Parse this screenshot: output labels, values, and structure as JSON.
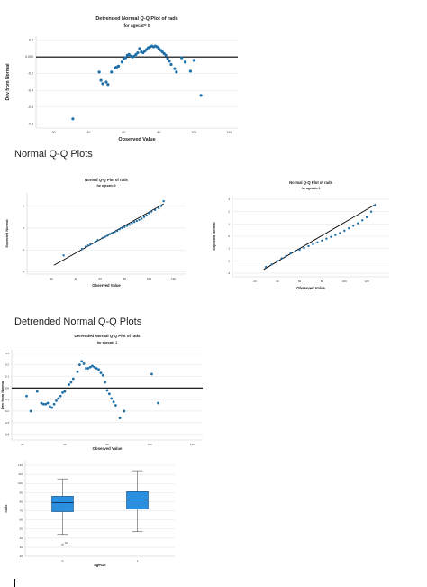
{
  "headings": {
    "normal_qq": "Normal Q-Q Plots",
    "detrended_qq": "Detrended Normal Q-Q Plots"
  },
  "colors": {
    "point": "#1f6fa8",
    "reference_line": "#000000",
    "grid": "#e6e6e6",
    "box_fill": "#2a8fdf",
    "box_stroke": "#1a4f80"
  },
  "chart_data": [
    {
      "type": "scatter",
      "title": "Detrended Normal Q-Q Plot of rads",
      "subtitle": "for agecat= 0",
      "xlabel": "Observed Value",
      "ylabel": "Dev from Normal",
      "xlim": [
        10,
        125
      ],
      "ylim": [
        -0.85,
        0.25
      ],
      "xticks": [
        20,
        40,
        60,
        80,
        100,
        120
      ],
      "yticks": [
        0.2,
        0.0,
        -0.2,
        -0.4,
        -0.6,
        -0.8
      ],
      "ytick_labels": [
        "0.2",
        "0.000",
        "-0.2",
        "-0.4",
        "-0.6",
        "-0.8"
      ],
      "grid": true,
      "reference_line": {
        "y": 0
      },
      "points": [
        [
          31,
          -0.74
        ],
        [
          46,
          -0.18
        ],
        [
          47,
          -0.28
        ],
        [
          48,
          -0.32
        ],
        [
          50,
          -0.3
        ],
        [
          51,
          -0.33
        ],
        [
          53,
          -0.18
        ],
        [
          55,
          -0.13
        ],
        [
          56,
          -0.12
        ],
        [
          57,
          -0.11
        ],
        [
          59,
          -0.06
        ],
        [
          60,
          -0.02
        ],
        [
          61,
          -0.01
        ],
        [
          62,
          0.02
        ],
        [
          63,
          0.03
        ],
        [
          64,
          0.01
        ],
        [
          65,
          0.0
        ],
        [
          66,
          0.01
        ],
        [
          67,
          0.03
        ],
        [
          68,
          0.05
        ],
        [
          69,
          0.1
        ],
        [
          70,
          0.06
        ],
        [
          71,
          0.05
        ],
        [
          72,
          0.07
        ],
        [
          73,
          0.09
        ],
        [
          74,
          0.11
        ],
        [
          75,
          0.12
        ],
        [
          76,
          0.13
        ],
        [
          77,
          0.12
        ],
        [
          78,
          0.13
        ],
        [
          79,
          0.12
        ],
        [
          80,
          0.1
        ],
        [
          81,
          0.08
        ],
        [
          82,
          0.06
        ],
        [
          83,
          0.04
        ],
        [
          84,
          0.02
        ],
        [
          85,
          -0.02
        ],
        [
          86,
          -0.05
        ],
        [
          87,
          -0.09
        ],
        [
          89,
          -0.14
        ],
        [
          90,
          -0.18
        ],
        [
          93,
          -0.01
        ],
        [
          95,
          -0.06
        ],
        [
          98,
          -0.17
        ],
        [
          100,
          -0.04
        ],
        [
          104,
          -0.46
        ]
      ]
    },
    {
      "type": "scatter",
      "title": "Normal Q-Q Plot of rads",
      "subtitle": "for agecat= 0",
      "xlabel": "Observed Value",
      "ylabel": "Expected Normal",
      "xlim": [
        0,
        130
      ],
      "ylim": [
        -4.2,
        3.2
      ],
      "xticks": [
        20,
        40,
        60,
        80,
        100,
        120
      ],
      "yticks": [
        2,
        0,
        -2,
        -4
      ],
      "ytick_labels": [
        "2",
        "0",
        "-2",
        "-4"
      ],
      "grid": true,
      "reference_line": {
        "from": [
          22,
          -3.4
        ],
        "to": [
          112,
          2.2
        ]
      },
      "points": [
        [
          30,
          -2.5
        ],
        [
          45,
          -1.9
        ],
        [
          48,
          -1.7
        ],
        [
          50,
          -1.6
        ],
        [
          52,
          -1.5
        ],
        [
          56,
          -1.25
        ],
        [
          58,
          -1.1
        ],
        [
          62,
          -0.9
        ],
        [
          64,
          -0.8
        ],
        [
          66,
          -0.7
        ],
        [
          68,
          -0.55
        ],
        [
          70,
          -0.45
        ],
        [
          72,
          -0.35
        ],
        [
          74,
          -0.25
        ],
        [
          76,
          -0.1
        ],
        [
          78,
          0.0
        ],
        [
          80,
          0.1
        ],
        [
          82,
          0.2
        ],
        [
          84,
          0.3
        ],
        [
          86,
          0.45
        ],
        [
          88,
          0.55
        ],
        [
          90,
          0.65
        ],
        [
          92,
          0.75
        ],
        [
          94,
          0.85
        ],
        [
          96,
          1.0
        ],
        [
          98,
          1.15
        ],
        [
          100,
          1.35
        ],
        [
          102,
          1.5
        ],
        [
          105,
          1.65
        ],
        [
          108,
          1.8
        ],
        [
          110,
          2.0
        ],
        [
          112,
          2.45
        ]
      ]
    },
    {
      "type": "scatter",
      "title": "Normal Q-Q Plot of rads",
      "subtitle": "for agecat= 1",
      "xlabel": "Observed Value",
      "ylabel": "Expected Normal",
      "xlim": [
        0,
        140
      ],
      "ylim": [
        -3.3,
        3.3
      ],
      "xticks": [
        20,
        40,
        60,
        80,
        100,
        120
      ],
      "yticks": [
        3,
        2,
        1,
        0,
        -1,
        -2,
        -3
      ],
      "ytick_labels": [
        "3",
        "2",
        "1",
        "0",
        "-1",
        "-2",
        "-3"
      ],
      "grid": true,
      "reference_line": {
        "from": [
          28,
          -2.7
        ],
        "to": [
          128,
          2.6
        ]
      },
      "points": [
        [
          30,
          -2.5
        ],
        [
          35,
          -2.3
        ],
        [
          40,
          -2.0
        ],
        [
          44,
          -1.8
        ],
        [
          48,
          -1.6
        ],
        [
          52,
          -1.4
        ],
        [
          56,
          -1.25
        ],
        [
          60,
          -1.1
        ],
        [
          64,
          -0.95
        ],
        [
          68,
          -0.8
        ],
        [
          72,
          -0.65
        ],
        [
          76,
          -0.5
        ],
        [
          80,
          -0.35
        ],
        [
          84,
          -0.2
        ],
        [
          88,
          -0.05
        ],
        [
          92,
          0.1
        ],
        [
          96,
          0.25
        ],
        [
          100,
          0.45
        ],
        [
          104,
          0.65
        ],
        [
          108,
          0.85
        ],
        [
          112,
          1.05
        ],
        [
          116,
          1.3
        ],
        [
          120,
          1.55
        ],
        [
          124,
          2.0
        ],
        [
          127,
          2.5
        ]
      ]
    },
    {
      "type": "scatter",
      "title": "Detrended Normal Q-Q Plot of rads",
      "subtitle": "for agecat= 1",
      "xlabel": "Observed Value",
      "ylabel": "Dev from Normal",
      "xlim": [
        35,
        125
      ],
      "ylim": [
        -0.45,
        0.33
      ],
      "xticks": [
        40,
        60,
        80,
        100,
        120
      ],
      "yticks": [
        0.3,
        0.2,
        0.1,
        0.0,
        -0.1,
        -0.2,
        -0.3,
        -0.4
      ],
      "ytick_labels": [
        "0.3",
        "0.2",
        "0.1",
        "0.000",
        "-0.1",
        "-0.2",
        "-0.3",
        "-0.4"
      ],
      "grid": true,
      "reference_line": {
        "y": 0
      },
      "points": [
        [
          42,
          -0.07
        ],
        [
          44,
          -0.2
        ],
        [
          47,
          -0.03
        ],
        [
          49,
          -0.13
        ],
        [
          50,
          -0.14
        ],
        [
          51,
          -0.14
        ],
        [
          52,
          -0.13
        ],
        [
          53,
          -0.16
        ],
        [
          54,
          -0.17
        ],
        [
          55,
          -0.14
        ],
        [
          56,
          -0.11
        ],
        [
          57,
          -0.09
        ],
        [
          58,
          -0.07
        ],
        [
          59,
          -0.04
        ],
        [
          60,
          -0.03
        ],
        [
          62,
          0.03
        ],
        [
          63,
          0.05
        ],
        [
          64,
          0.08
        ],
        [
          66,
          0.14
        ],
        [
          67,
          0.2
        ],
        [
          68,
          0.23
        ],
        [
          69,
          0.21
        ],
        [
          70,
          0.17
        ],
        [
          71,
          0.17
        ],
        [
          72,
          0.18
        ],
        [
          73,
          0.19
        ],
        [
          74,
          0.18
        ],
        [
          75,
          0.17
        ],
        [
          76,
          0.16
        ],
        [
          77,
          0.13
        ],
        [
          78,
          0.11
        ],
        [
          79,
          0.05
        ],
        [
          80,
          -0.02
        ],
        [
          81,
          -0.05
        ],
        [
          82,
          -0.09
        ],
        [
          83,
          -0.12
        ],
        [
          84,
          -0.15
        ],
        [
          86,
          -0.26
        ],
        [
          88,
          -0.2
        ],
        [
          101,
          0.12
        ],
        [
          104,
          -0.13
        ]
      ]
    },
    {
      "type": "boxplot",
      "title": "",
      "xlabel": "agecat",
      "ylabel": "rads",
      "ylim": [
        20,
        125
      ],
      "yticks": [
        20,
        30,
        40,
        50,
        60,
        70,
        80,
        90,
        100,
        110,
        120
      ],
      "ytick_labels": [
        "20",
        "30",
        "40",
        "50",
        "60",
        "70",
        "80",
        "90",
        "100",
        "110",
        "120"
      ],
      "grid": true,
      "categories": [
        "0",
        "1"
      ],
      "boxes": [
        {
          "category": "0",
          "whisker_low": 44,
          "q1": 69,
          "median": 79,
          "q3": 86,
          "whisker_high": 105,
          "outliers": [
            {
              "value": 33,
              "label": "129"
            }
          ]
        },
        {
          "category": "1",
          "whisker_low": 47,
          "q1": 72,
          "median": 82,
          "q3": 91,
          "whisker_high": 114,
          "outliers": []
        }
      ]
    }
  ]
}
